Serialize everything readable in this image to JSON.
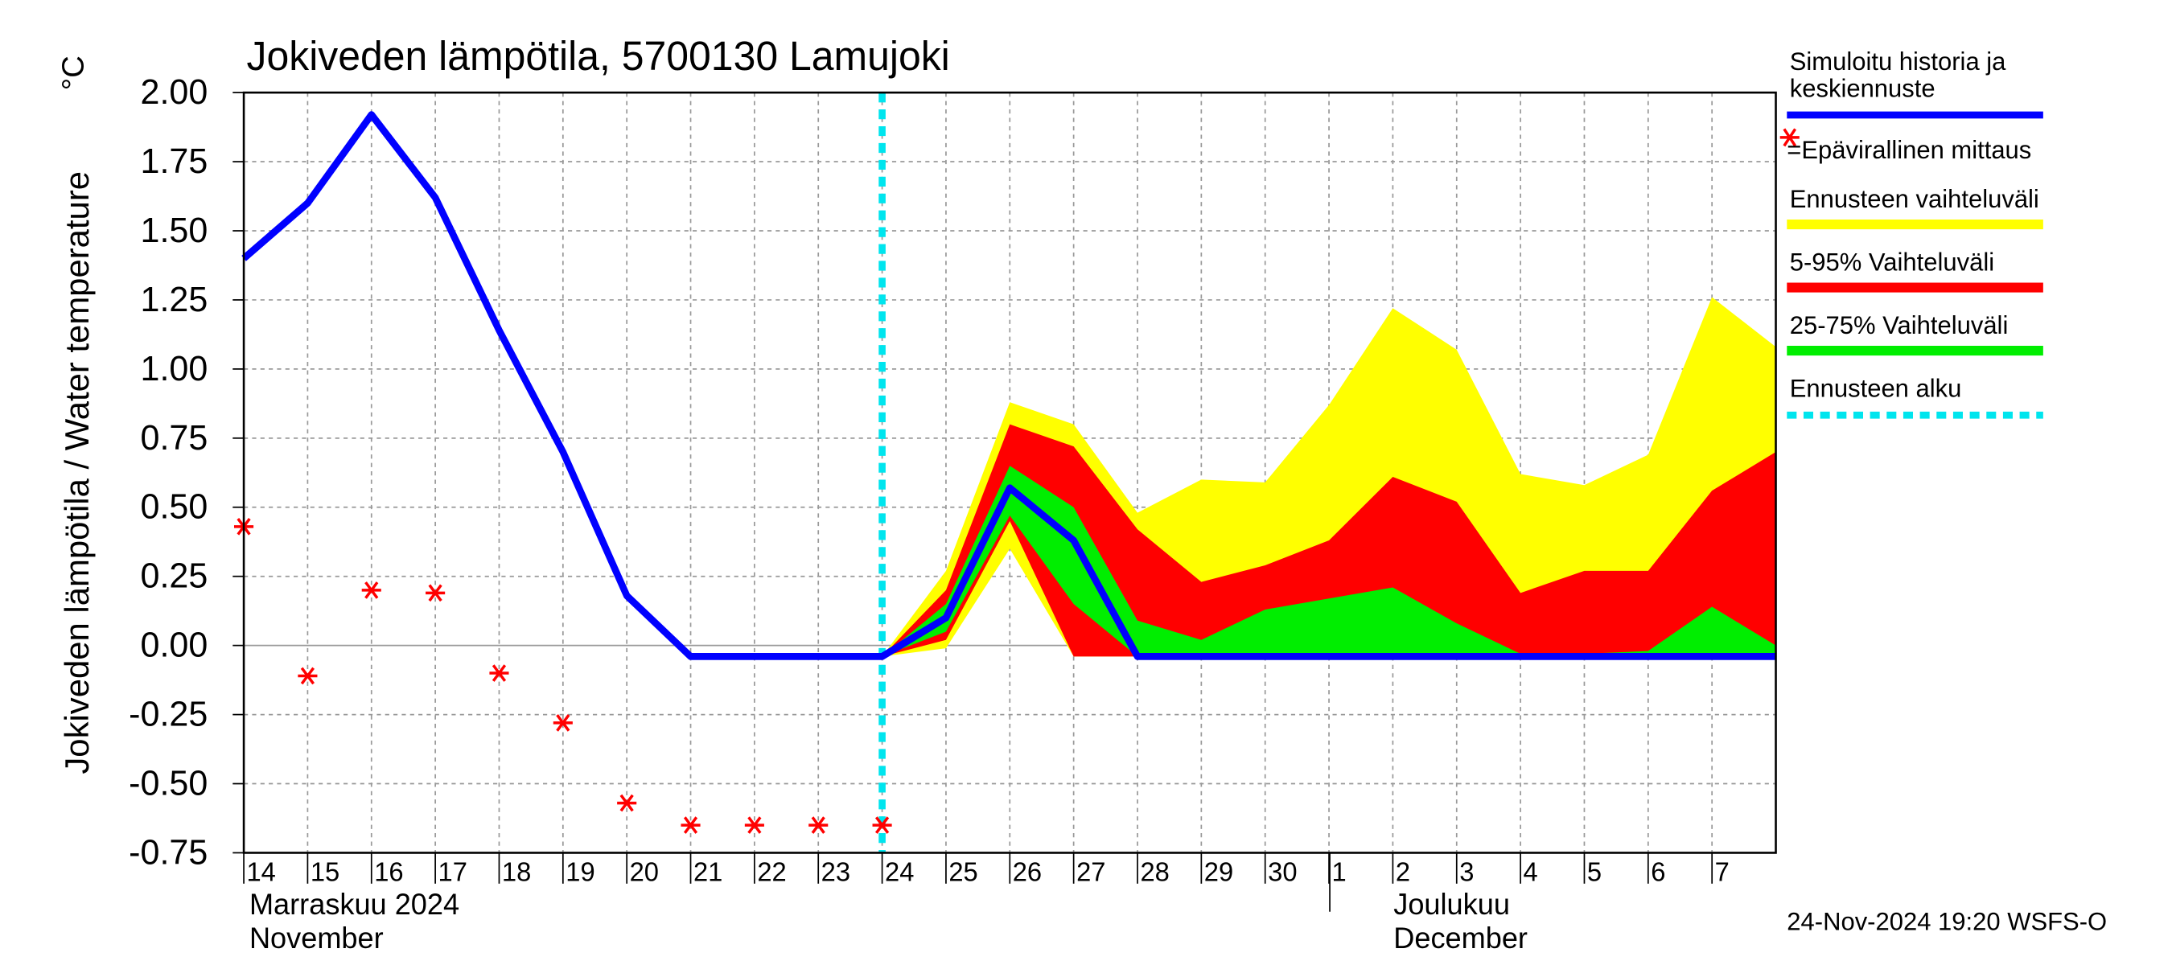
{
  "chart_data": {
    "type": "line",
    "title": "Jokiveden lämpötila, 5700130 Lamujoki",
    "ylabel": "Jokiveden lämpötila / Water temperature",
    "yunit": "°C",
    "months": [
      {
        "fi": "Marraskuu 2024",
        "en": "November"
      },
      {
        "fi": "Joulukuu",
        "en": "December"
      }
    ],
    "timestamp": "24-Nov-2024 19:20 WSFS-O",
    "grid": true,
    "xlim": [
      "2024-11-14",
      "2024-12-08"
    ],
    "ylim": [
      -0.75,
      2.0
    ],
    "yticks": [
      {
        "value": -0.75,
        "label": "-0.75"
      },
      {
        "value": -0.5,
        "label": "-0.50"
      },
      {
        "value": -0.25,
        "label": "-0.25"
      },
      {
        "value": 0,
        "label": "0.00"
      },
      {
        "value": 0.25,
        "label": "0.25"
      },
      {
        "value": 0.5,
        "label": "0.50"
      },
      {
        "value": 0.75,
        "label": "0.75"
      },
      {
        "value": 1,
        "label": "1.00"
      },
      {
        "value": 1.25,
        "label": "1.25"
      },
      {
        "value": 1.5,
        "label": "1.50"
      },
      {
        "value": 1.75,
        "label": "1.75"
      },
      {
        "value": 2,
        "label": "2.00"
      }
    ],
    "xticks": [
      {
        "value": "2024-11-14",
        "label": "14"
      },
      {
        "value": "2024-11-15",
        "label": "15"
      },
      {
        "value": "2024-11-16",
        "label": "16"
      },
      {
        "value": "2024-11-17",
        "label": "17"
      },
      {
        "value": "2024-11-18",
        "label": "18"
      },
      {
        "value": "2024-11-19",
        "label": "19"
      },
      {
        "value": "2024-11-20",
        "label": "20"
      },
      {
        "value": "2024-11-21",
        "label": "21"
      },
      {
        "value": "2024-11-22",
        "label": "22"
      },
      {
        "value": "2024-11-23",
        "label": "23"
      },
      {
        "value": "2024-11-24",
        "label": "24"
      },
      {
        "value": "2024-11-25",
        "label": "25"
      },
      {
        "value": "2024-11-26",
        "label": "26"
      },
      {
        "value": "2024-11-27",
        "label": "27"
      },
      {
        "value": "2024-11-28",
        "label": "28"
      },
      {
        "value": "2024-11-29",
        "label": "29"
      },
      {
        "value": "2024-11-30",
        "label": "30"
      },
      {
        "value": "2024-12-01",
        "label": "1"
      },
      {
        "value": "2024-12-02",
        "label": "2"
      },
      {
        "value": "2024-12-03",
        "label": "3"
      },
      {
        "value": "2024-12-04",
        "label": "4"
      },
      {
        "value": "2024-12-05",
        "label": "5"
      },
      {
        "value": "2024-12-06",
        "label": "6"
      },
      {
        "value": "2024-12-07",
        "label": "7"
      }
    ],
    "x": [
      "2024-11-14",
      "2024-11-15",
      "2024-11-16",
      "2024-11-17",
      "2024-11-18",
      "2024-11-19",
      "2024-11-20",
      "2024-11-21",
      "2024-11-22",
      "2024-11-23",
      "2024-11-24",
      "2024-11-25",
      "2024-11-26",
      "2024-11-27",
      "2024-11-28",
      "2024-11-29",
      "2024-11-30",
      "2024-12-01",
      "2024-12-02",
      "2024-12-03",
      "2024-12-04",
      "2024-12-05",
      "2024-12-06",
      "2024-12-07",
      "2024-12-08"
    ],
    "bands": [
      {
        "name": "Ennusteen vaihteluväli",
        "color": "#ffff00",
        "upper": [
          null,
          null,
          null,
          null,
          null,
          null,
          null,
          null,
          null,
          null,
          -0.04,
          0.27,
          0.88,
          0.8,
          0.48,
          0.6,
          0.59,
          0.87,
          1.22,
          1.07,
          0.62,
          0.58,
          0.69,
          1.26,
          1.08
        ],
        "lower": [
          null,
          null,
          null,
          null,
          null,
          null,
          null,
          null,
          null,
          null,
          -0.04,
          -0.01,
          0.35,
          -0.04,
          -0.04,
          -0.04,
          -0.04,
          -0.04,
          -0.04,
          -0.04,
          -0.04,
          -0.04,
          -0.04,
          -0.04,
          -0.04
        ]
      },
      {
        "name": "5-95% Vaihteluväli",
        "color": "#ff0000",
        "upper": [
          null,
          null,
          null,
          null,
          null,
          null,
          null,
          null,
          null,
          null,
          -0.04,
          0.2,
          0.8,
          0.72,
          0.42,
          0.23,
          0.29,
          0.38,
          0.61,
          0.52,
          0.19,
          0.27,
          0.27,
          0.56,
          0.7
        ],
        "lower": [
          null,
          null,
          null,
          null,
          null,
          null,
          null,
          null,
          null,
          null,
          -0.04,
          0.02,
          0.45,
          -0.04,
          -0.04,
          -0.04,
          -0.04,
          -0.04,
          -0.04,
          -0.04,
          -0.04,
          -0.04,
          -0.04,
          -0.04,
          -0.04
        ]
      },
      {
        "name": "25-75% Vaihteluväli",
        "color": "#00ee00",
        "upper": [
          null,
          null,
          null,
          null,
          null,
          null,
          null,
          null,
          null,
          null,
          -0.04,
          0.15,
          0.65,
          0.5,
          0.09,
          0.02,
          0.13,
          0.17,
          0.21,
          0.08,
          -0.03,
          -0.03,
          -0.02,
          0.14,
          0.0
        ],
        "lower": [
          null,
          null,
          null,
          null,
          null,
          null,
          null,
          null,
          null,
          null,
          -0.04,
          0.05,
          0.47,
          0.15,
          -0.04,
          -0.04,
          -0.04,
          -0.04,
          -0.04,
          -0.04,
          -0.04,
          -0.04,
          -0.04,
          -0.04,
          -0.04
        ]
      }
    ],
    "series": [
      {
        "name": "Simuloitu historia ja keskiennuste",
        "color": "#0000ff",
        "values": [
          1.4,
          1.6,
          1.92,
          1.62,
          1.14,
          0.7,
          0.18,
          -0.04,
          -0.04,
          -0.04,
          -0.04,
          0.1,
          0.57,
          0.38,
          -0.04,
          -0.04,
          -0.04,
          -0.04,
          -0.04,
          -0.04,
          -0.04,
          -0.04,
          -0.04,
          -0.04,
          -0.04
        ]
      },
      {
        "name": "=Epävirallinen mittaus",
        "color": "#ff0000",
        "marker": "star",
        "values": [
          0.43,
          -0.11,
          0.2,
          0.19,
          -0.1,
          -0.28,
          -0.57,
          -0.65,
          -0.65,
          -0.65,
          -0.65,
          null,
          null,
          null,
          null,
          null,
          null,
          null,
          null,
          null,
          null,
          null,
          null,
          null,
          null
        ]
      }
    ],
    "forecast_start": {
      "name": "Ennusteen alku",
      "color": "#00e5ee",
      "x": "2024-11-24"
    }
  }
}
